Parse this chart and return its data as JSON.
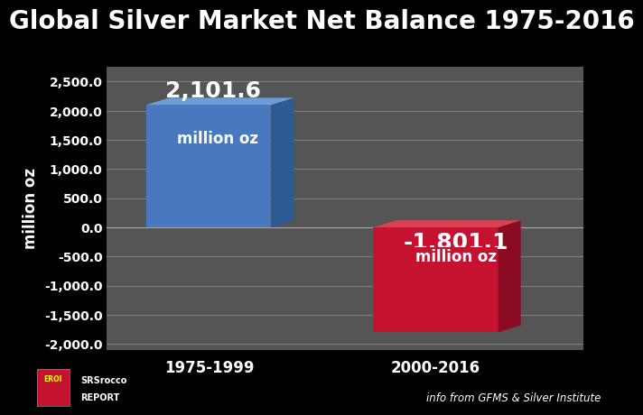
{
  "title": "Global Silver Market Net Balance 1975-2016",
  "categories": [
    "1975-1999",
    "2000-2016"
  ],
  "values": [
    2101.6,
    -1801.1
  ],
  "bar_colors_front": [
    "#4878be",
    "#c41230"
  ],
  "bar_colors_right": [
    "#2e5a96",
    "#8b0c22"
  ],
  "bar_colors_top": [
    "#6a9fd8",
    "#d94050"
  ],
  "ylabel": "million oz",
  "ylim": [
    -2100,
    2750
  ],
  "yticks": [
    -2000.0,
    -1500.0,
    -1000.0,
    -500.0,
    0.0,
    500.0,
    1000.0,
    1500.0,
    2000.0,
    2500.0
  ],
  "ytick_labels": [
    "-2,000.0",
    "-1,500.0",
    "-1,000.0",
    "-500.0",
    "0.0",
    "500.0",
    "1,000.0",
    "1,500.0",
    "2,000.0",
    "2,500.0"
  ],
  "background_color": "#000000",
  "plot_bg_color": "#555555",
  "grid_color": "#888888",
  "text_color": "#FFFFFF",
  "title_fontsize": 20,
  "label_fontsize": 12,
  "tick_fontsize": 10,
  "annotation_values": [
    "2,101.6",
    "-1,801.1"
  ],
  "annotation_sub": [
    "million oz",
    "million oz"
  ],
  "source_text": "info from GFMS & Silver Institute",
  "logo_text1": "EROI",
  "logo_text2": "SRSrocco\nREPORT"
}
